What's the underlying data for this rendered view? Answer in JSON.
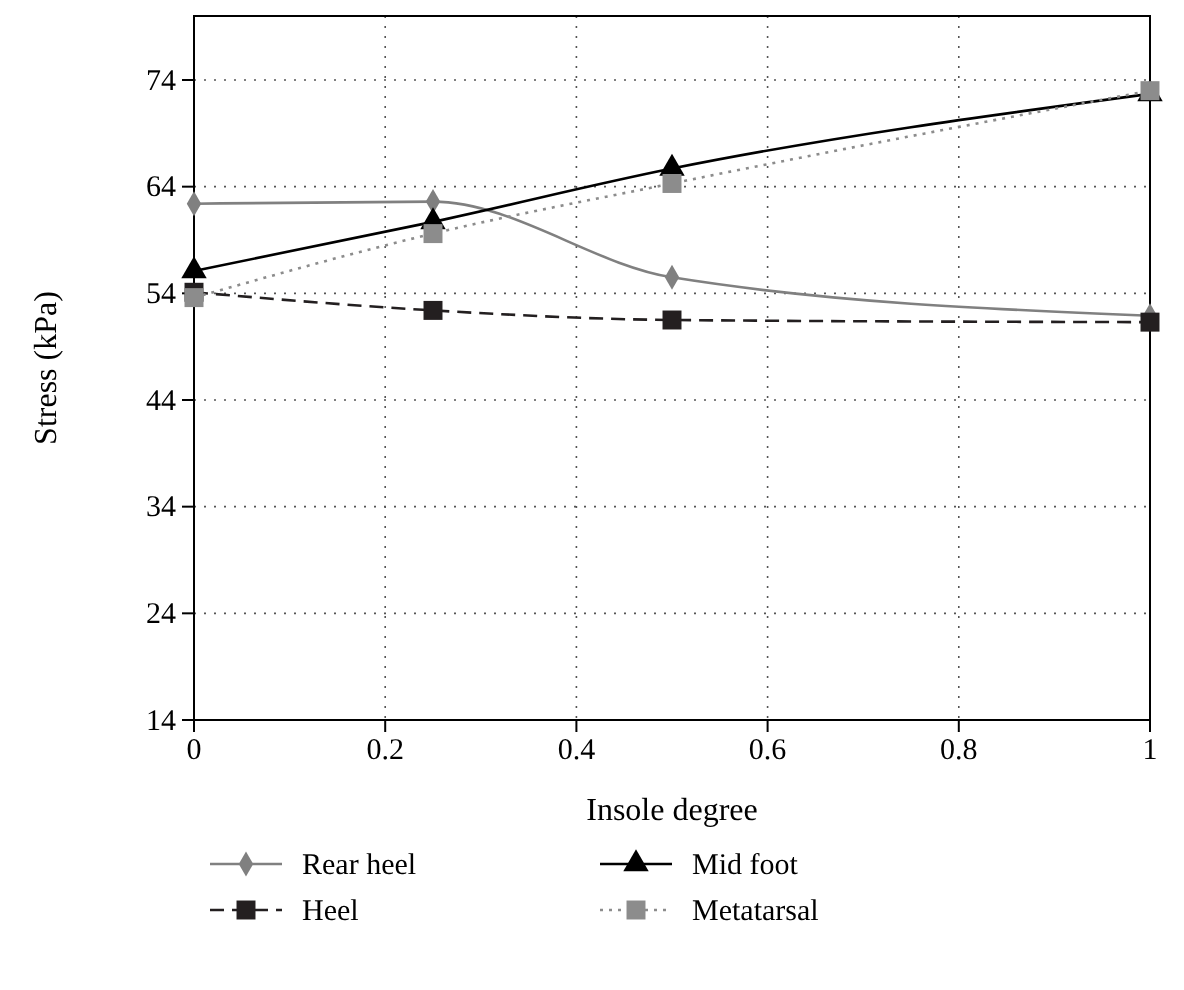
{
  "chart_data": {
    "type": "line",
    "xlabel": "Insole degree",
    "ylabel": "Stress (kPa)",
    "x": [
      0,
      0.25,
      0.5,
      1
    ],
    "xlim": [
      0,
      1
    ],
    "xticks": [
      0,
      0.2,
      0.4,
      0.6,
      0.8,
      1
    ],
    "ylim": [
      14,
      80
    ],
    "yticks": [
      14,
      24,
      34,
      44,
      54,
      64,
      74
    ],
    "grid": true,
    "legend": "bottom",
    "series": [
      {
        "name": "Rear heel",
        "color": "#808080",
        "values": [
          62.4,
          62.6,
          55.5,
          51.9
        ],
        "marker": "diamond",
        "line_style": "solid"
      },
      {
        "name": "Heel",
        "color": "#231f20",
        "values": [
          54.1,
          52.4,
          51.5,
          51.3
        ],
        "marker": "square",
        "line_style": "dashed"
      },
      {
        "name": "Mid foot",
        "color": "#000000",
        "values": [
          56.1,
          60.7,
          65.7,
          72.7
        ],
        "marker": "triangle",
        "line_style": "solid"
      },
      {
        "name": "Metatarsal",
        "color": "#8c8c8c",
        "values": [
          53.6,
          59.6,
          64.3,
          73
        ],
        "marker": "square",
        "line_style": "dotted"
      }
    ]
  }
}
